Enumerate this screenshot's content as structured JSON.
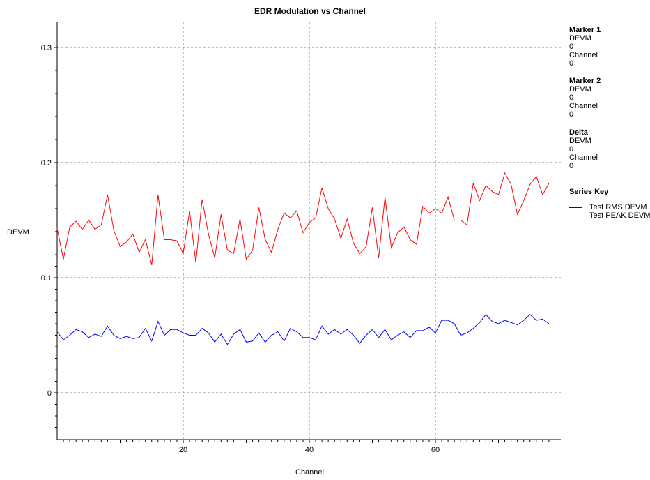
{
  "chart_data": {
    "type": "line",
    "title": "EDR Modulation vs Channel",
    "xlabel": "Channel",
    "ylabel": "DEVM",
    "xlim": [
      0,
      78
    ],
    "ylim": [
      -0.04,
      0.32
    ],
    "xticks": [
      "20",
      "40",
      "60"
    ],
    "xtick_values": [
      20,
      40,
      60
    ],
    "yticks": [
      "0",
      "0.1",
      "0.2",
      "0.3"
    ],
    "ytick_values": [
      0,
      0.1,
      0.2,
      0.3
    ],
    "grid": true,
    "x": [
      0,
      1,
      2,
      3,
      4,
      5,
      6,
      7,
      8,
      9,
      10,
      11,
      12,
      13,
      14,
      15,
      16,
      17,
      18,
      19,
      20,
      21,
      22,
      23,
      24,
      25,
      26,
      27,
      28,
      29,
      30,
      31,
      32,
      33,
      34,
      35,
      36,
      37,
      38,
      39,
      40,
      41,
      42,
      43,
      44,
      45,
      46,
      47,
      48,
      49,
      50,
      51,
      52,
      53,
      54,
      55,
      56,
      57,
      58,
      59,
      60,
      61,
      62,
      63,
      64,
      65,
      66,
      67,
      68,
      69,
      70,
      71,
      72,
      73,
      74,
      75,
      76,
      77,
      78
    ],
    "series": [
      {
        "name": "Test RMS DEVM",
        "color": "#0000ff",
        "values": [
          0.053,
          0.046,
          0.05,
          0.055,
          0.053,
          0.048,
          0.051,
          0.049,
          0.058,
          0.05,
          0.047,
          0.049,
          0.047,
          0.048,
          0.056,
          0.045,
          0.062,
          0.05,
          0.055,
          0.055,
          0.052,
          0.05,
          0.05,
          0.056,
          0.052,
          0.044,
          0.051,
          0.042,
          0.051,
          0.055,
          0.044,
          0.045,
          0.052,
          0.044,
          0.05,
          0.053,
          0.045,
          0.056,
          0.053,
          0.048,
          0.048,
          0.046,
          0.058,
          0.051,
          0.055,
          0.051,
          0.055,
          0.05,
          0.043,
          0.05,
          0.055,
          0.048,
          0.055,
          0.046,
          0.05,
          0.053,
          0.048,
          0.054,
          0.054,
          0.057,
          0.052,
          0.063,
          0.063,
          0.06,
          0.05,
          0.052,
          0.056,
          0.061,
          0.068,
          0.062,
          0.06,
          0.063,
          0.061,
          0.059,
          0.063,
          0.068,
          0.063,
          0.064,
          0.06
        ]
      },
      {
        "name": "Test PEAK DEVM",
        "color": "#ff0000",
        "values": [
          0.143,
          0.116,
          0.144,
          0.149,
          0.142,
          0.15,
          0.142,
          0.146,
          0.172,
          0.141,
          0.127,
          0.131,
          0.138,
          0.122,
          0.133,
          0.111,
          0.172,
          0.133,
          0.133,
          0.132,
          0.121,
          0.158,
          0.113,
          0.168,
          0.138,
          0.117,
          0.155,
          0.124,
          0.121,
          0.151,
          0.116,
          0.124,
          0.161,
          0.133,
          0.122,
          0.142,
          0.156,
          0.152,
          0.158,
          0.139,
          0.148,
          0.152,
          0.178,
          0.16,
          0.151,
          0.134,
          0.151,
          0.13,
          0.121,
          0.127,
          0.161,
          0.117,
          0.17,
          0.126,
          0.139,
          0.144,
          0.133,
          0.129,
          0.162,
          0.156,
          0.16,
          0.156,
          0.17,
          0.15,
          0.15,
          0.146,
          0.182,
          0.167,
          0.18,
          0.175,
          0.172,
          0.191,
          0.181,
          0.155,
          0.167,
          0.181,
          0.188,
          0.172,
          0.182
        ]
      }
    ],
    "legend_title": "Series Key",
    "legend_position": "right"
  },
  "side_panel": {
    "marker1": {
      "title": "Marker 1",
      "devm_label": "DEVM",
      "devm_value": "0",
      "channel_label": "Channel",
      "channel_value": "0"
    },
    "marker2": {
      "title": "Marker 2",
      "devm_label": "DEVM",
      "devm_value": "0",
      "channel_label": "Channel",
      "channel_value": "0"
    },
    "delta": {
      "title": "Delta",
      "devm_label": "DEVM",
      "devm_value": "0",
      "channel_label": "Channel",
      "channel_value": "0"
    }
  },
  "colors": {
    "grid": "#808080",
    "axis": "#000000",
    "background": "#ffffff"
  }
}
